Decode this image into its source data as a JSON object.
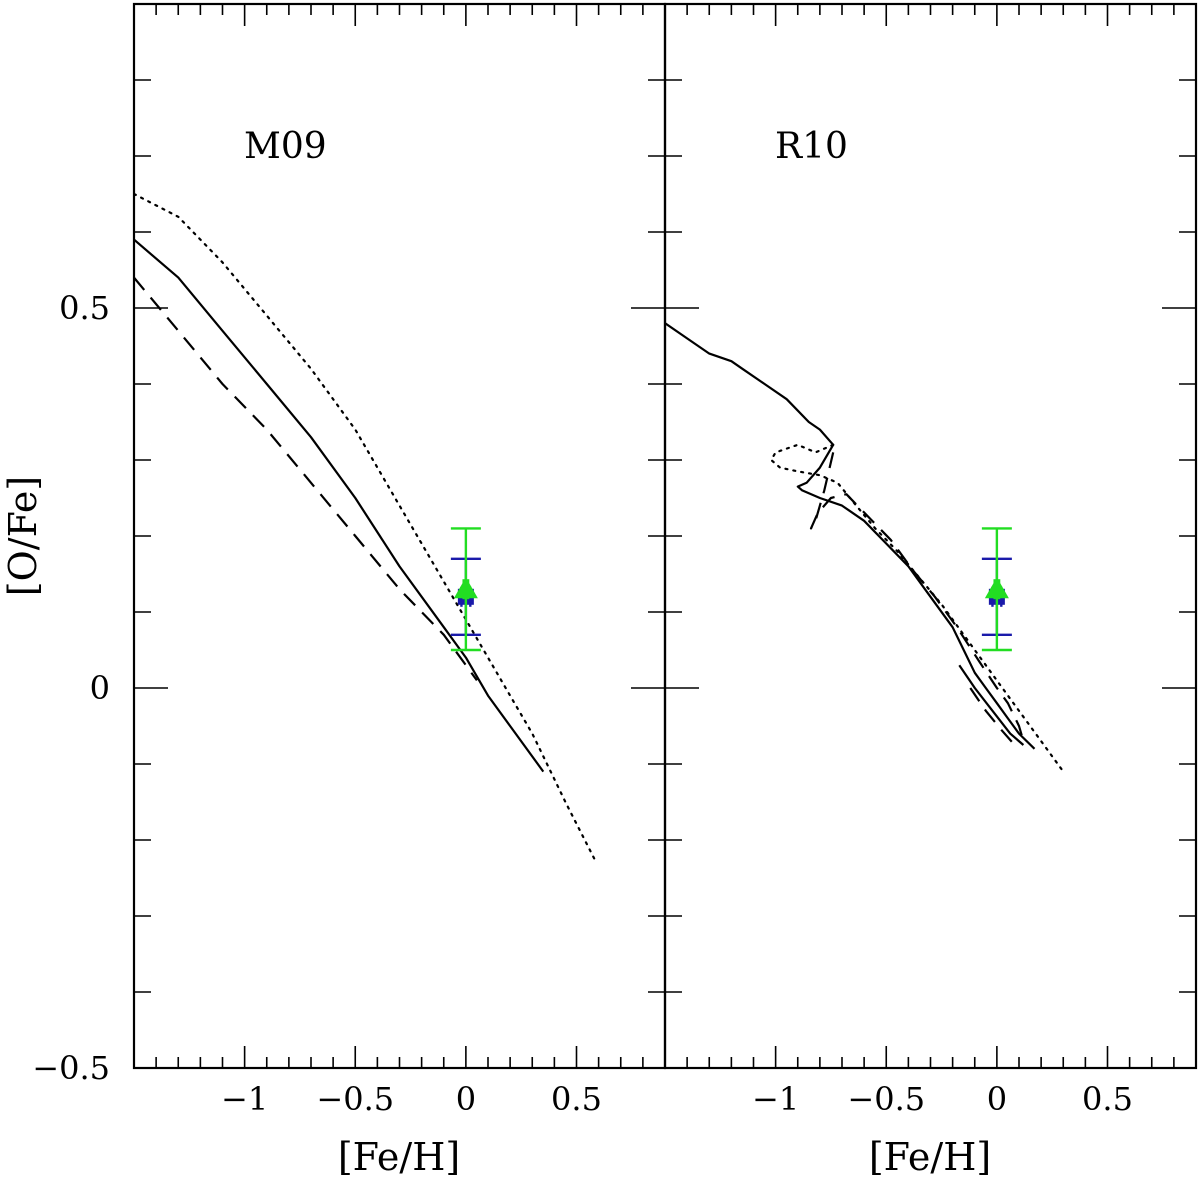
{
  "chart_data": [
    {
      "type": "line",
      "panel_label": "M09",
      "xlabel": "[Fe/H]",
      "ylabel": "[O/Fe]",
      "xlim": [
        -1.5,
        0.9
      ],
      "ylim": [
        -0.5,
        0.9
      ],
      "x_tick_labels": [
        "−1",
        "−0.5",
        "0",
        "0.5"
      ],
      "y_tick_labels": [
        "−0.5",
        "0",
        "0.5"
      ],
      "series": [
        {
          "style": "solid",
          "points": [
            [
              -1.5,
              0.59
            ],
            [
              -1.3,
              0.54
            ],
            [
              -1.1,
              0.47
            ],
            [
              -0.9,
              0.4
            ],
            [
              -0.7,
              0.33
            ],
            [
              -0.5,
              0.25
            ],
            [
              -0.3,
              0.16
            ],
            [
              -0.1,
              0.08
            ],
            [
              0.0,
              0.04
            ],
            [
              0.1,
              -0.01
            ],
            [
              0.2,
              -0.05
            ],
            [
              0.35,
              -0.11
            ]
          ]
        },
        {
          "style": "dotted",
          "points": [
            [
              -1.5,
              0.65
            ],
            [
              -1.3,
              0.62
            ],
            [
              -1.1,
              0.56
            ],
            [
              -0.9,
              0.49
            ],
            [
              -0.7,
              0.42
            ],
            [
              -0.5,
              0.34
            ],
            [
              -0.3,
              0.24
            ],
            [
              -0.1,
              0.14
            ],
            [
              0.0,
              0.09
            ],
            [
              0.1,
              0.04
            ],
            [
              0.2,
              -0.01
            ],
            [
              0.3,
              -0.06
            ],
            [
              0.45,
              -0.15
            ],
            [
              0.59,
              -0.23
            ]
          ]
        },
        {
          "style": "dashed",
          "points": [
            [
              -1.5,
              0.54
            ],
            [
              -1.3,
              0.47
            ],
            [
              -1.1,
              0.4
            ],
            [
              -0.9,
              0.34
            ],
            [
              -0.7,
              0.27
            ],
            [
              -0.5,
              0.2
            ],
            [
              -0.3,
              0.13
            ],
            [
              -0.1,
              0.07
            ],
            [
              0.0,
              0.03
            ],
            [
              0.05,
              0.01
            ]
          ]
        }
      ],
      "observations": [
        {
          "x": 0.0,
          "y": 0.12,
          "marker": "square",
          "color": "#1a1aaa",
          "yerr": 0.05,
          "xerr": 0.02
        },
        {
          "x": 0.0,
          "y": 0.13,
          "marker": "triangle",
          "color": "#22dd22",
          "yerr": 0.08,
          "xerr": 0.01
        }
      ]
    },
    {
      "type": "line",
      "panel_label": "R10",
      "xlabel": "[Fe/H]",
      "ylabel": "",
      "xlim": [
        -1.5,
        0.9
      ],
      "ylim": [
        -0.5,
        0.9
      ],
      "x_tick_labels": [
        "−1",
        "−0.5",
        "0",
        "0.5"
      ],
      "series": [
        {
          "style": "solid",
          "points": [
            [
              -1.5,
              0.48
            ],
            [
              -1.4,
              0.46
            ],
            [
              -1.3,
              0.44
            ],
            [
              -1.2,
              0.43
            ],
            [
              -1.15,
              0.42
            ],
            [
              -1.05,
              0.4
            ],
            [
              -0.95,
              0.38
            ],
            [
              -0.85,
              0.35
            ],
            [
              -0.8,
              0.34
            ],
            [
              -0.74,
              0.32
            ],
            [
              -0.8,
              0.29
            ],
            [
              -0.86,
              0.27
            ],
            [
              -0.9,
              0.265
            ],
            [
              -0.88,
              0.26
            ],
            [
              -0.8,
              0.25
            ],
            [
              -0.7,
              0.24
            ],
            [
              -0.6,
              0.22
            ],
            [
              -0.5,
              0.19
            ],
            [
              -0.4,
              0.16
            ],
            [
              -0.3,
              0.12
            ],
            [
              -0.2,
              0.08
            ],
            [
              -0.15,
              0.05
            ],
            [
              -0.1,
              0.02
            ],
            [
              -0.05,
              0.0
            ],
            [
              0.0,
              -0.02
            ],
            [
              0.05,
              -0.04
            ],
            [
              0.1,
              -0.06
            ],
            [
              0.17,
              -0.08
            ]
          ]
        },
        {
          "style": "dotted",
          "points": [
            [
              -0.74,
              0.32
            ],
            [
              -0.82,
              0.31
            ],
            [
              -0.9,
              0.32
            ],
            [
              -1.0,
              0.31
            ],
            [
              -1.02,
              0.3
            ],
            [
              -0.98,
              0.29
            ],
            [
              -0.9,
              0.285
            ],
            [
              -0.8,
              0.28
            ],
            [
              -0.72,
              0.27
            ],
            [
              -0.65,
              0.245
            ],
            [
              -0.55,
              0.21
            ],
            [
              -0.45,
              0.18
            ],
            [
              -0.35,
              0.145
            ],
            [
              -0.25,
              0.11
            ],
            [
              -0.15,
              0.07
            ],
            [
              -0.05,
              0.03
            ],
            [
              0.05,
              -0.01
            ],
            [
              0.15,
              -0.05
            ],
            [
              0.3,
              -0.11
            ]
          ]
        },
        {
          "style": "dashed",
          "points": [
            [
              -0.74,
              0.31
            ],
            [
              -0.78,
              0.26
            ],
            [
              -0.82,
              0.22
            ],
            [
              -0.84,
              0.21
            ],
            [
              -0.81,
              0.23
            ],
            [
              -0.75,
              0.25
            ],
            [
              -0.68,
              0.255
            ],
            [
              -0.58,
              0.225
            ],
            [
              -0.48,
              0.195
            ],
            [
              -0.38,
              0.155
            ],
            [
              -0.28,
              0.12
            ],
            [
              -0.18,
              0.08
            ],
            [
              -0.08,
              0.035
            ],
            [
              0.0,
              0.0
            ],
            [
              0.05,
              -0.02
            ],
            [
              0.1,
              -0.05
            ],
            [
              0.12,
              -0.07
            ]
          ]
        },
        {
          "style": "solid",
          "points": [
            [
              -0.17,
              0.03
            ],
            [
              -0.1,
              0.0
            ],
            [
              -0.02,
              -0.03
            ],
            [
              0.06,
              -0.06
            ],
            [
              0.12,
              -0.075
            ]
          ]
        },
        {
          "style": "dashed",
          "points": [
            [
              -0.12,
              0.0
            ],
            [
              -0.05,
              -0.03
            ],
            [
              0.02,
              -0.055
            ],
            [
              0.08,
              -0.075
            ]
          ]
        }
      ],
      "observations": [
        {
          "x": 0.0,
          "y": 0.12,
          "marker": "square",
          "color": "#1a1aaa",
          "yerr": 0.05,
          "xerr": 0.02
        },
        {
          "x": 0.0,
          "y": 0.13,
          "marker": "triangle",
          "color": "#22dd22",
          "yerr": 0.08,
          "xerr": 0.01
        }
      ]
    }
  ]
}
